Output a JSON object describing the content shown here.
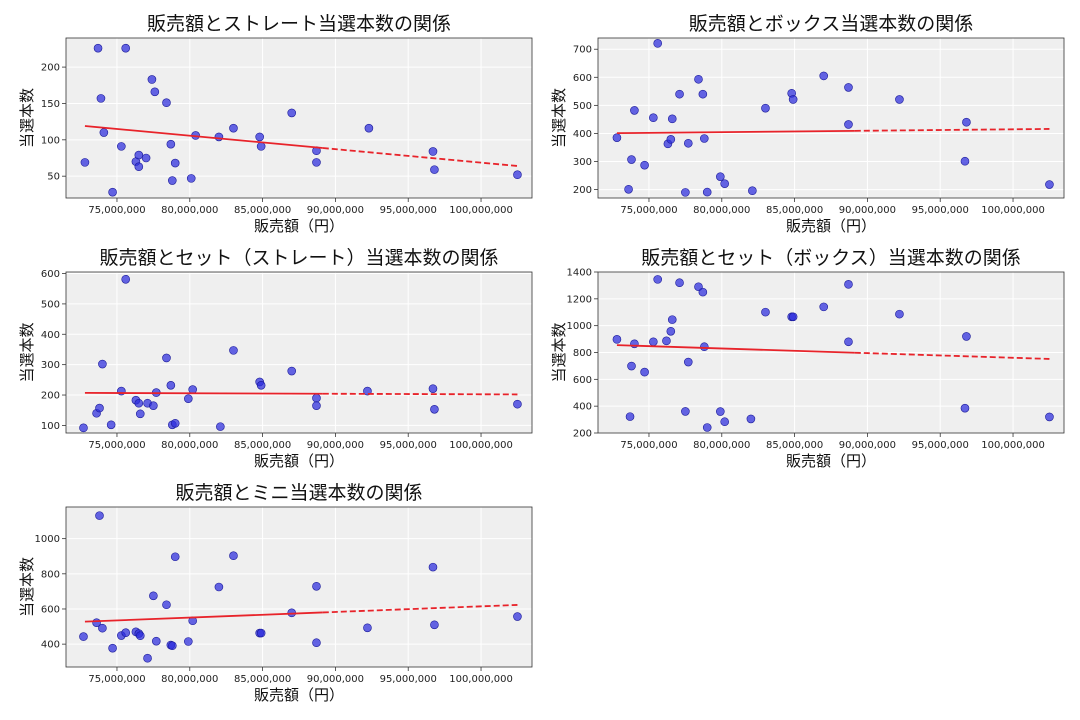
{
  "chart_data": [
    {
      "type": "scatter",
      "title": "販売額とストレート当選本数の関係",
      "xlabel": "販売額（円）",
      "ylabel": "当選本数",
      "xlim": [
        71500000,
        103500000
      ],
      "ylim": [
        20,
        240
      ],
      "xticks": [
        75000000,
        80000000,
        85000000,
        90000000,
        95000000,
        100000000
      ],
      "xtick_labels": [
        "75,000,000",
        "80,000,000",
        "85,000,000",
        "90,000,000",
        "95,000,000",
        "100,000,000"
      ],
      "yticks": [
        50,
        100,
        150,
        200
      ],
      "ytick_labels": [
        "50",
        "100",
        "150",
        "200"
      ],
      "grid": true,
      "points": [
        [
          72800000,
          69
        ],
        [
          73700000,
          226
        ],
        [
          73900000,
          157
        ],
        [
          74100000,
          110
        ],
        [
          74700000,
          28
        ],
        [
          75300000,
          91
        ],
        [
          75600000,
          226
        ],
        [
          76300000,
          70
        ],
        [
          76500000,
          79
        ],
        [
          76500000,
          63
        ],
        [
          77000000,
          75
        ],
        [
          77400000,
          183
        ],
        [
          77600000,
          166
        ],
        [
          78400000,
          151
        ],
        [
          78700000,
          94
        ],
        [
          78800000,
          44
        ],
        [
          79000000,
          68
        ],
        [
          80100000,
          47
        ],
        [
          80400000,
          106
        ],
        [
          82000000,
          104
        ],
        [
          83000000,
          116
        ],
        [
          84800000,
          104
        ],
        [
          84900000,
          91
        ],
        [
          87000000,
          137
        ],
        [
          88700000,
          85
        ],
        [
          88700000,
          69
        ],
        [
          92300000,
          116
        ],
        [
          96700000,
          84
        ],
        [
          96800000,
          59
        ],
        [
          102500000,
          52
        ]
      ],
      "trend": {
        "x": [
          72800000,
          102500000
        ],
        "y": [
          119,
          64
        ]
      }
    },
    {
      "type": "scatter",
      "title": "販売額とボックス当選本数の関係",
      "xlabel": "販売額（円）",
      "ylabel": "当選本数",
      "xlim": [
        71500000,
        103500000
      ],
      "ylim": [
        170,
        740
      ],
      "xticks": [
        75000000,
        80000000,
        85000000,
        90000000,
        95000000,
        100000000
      ],
      "xtick_labels": [
        "75,000,000",
        "80,000,000",
        "85,000,000",
        "90,000,000",
        "95,000,000",
        "100,000,000"
      ],
      "yticks": [
        200,
        300,
        400,
        500,
        600,
        700
      ],
      "ytick_labels": [
        "200",
        "300",
        "400",
        "500",
        "600",
        "700"
      ],
      "grid": true,
      "points": [
        [
          72800000,
          385
        ],
        [
          73600000,
          201
        ],
        [
          73800000,
          307
        ],
        [
          74000000,
          482
        ],
        [
          74700000,
          287
        ],
        [
          75300000,
          456
        ],
        [
          75600000,
          721
        ],
        [
          76300000,
          363
        ],
        [
          76500000,
          379
        ],
        [
          76600000,
          452
        ],
        [
          77100000,
          540
        ],
        [
          77500000,
          190
        ],
        [
          77700000,
          365
        ],
        [
          78400000,
          593
        ],
        [
          78700000,
          540
        ],
        [
          78800000,
          382
        ],
        [
          79000000,
          191
        ],
        [
          79900000,
          246
        ],
        [
          80200000,
          221
        ],
        [
          82100000,
          196
        ],
        [
          83000000,
          490
        ],
        [
          84800000,
          543
        ],
        [
          84900000,
          521
        ],
        [
          87000000,
          605
        ],
        [
          88700000,
          564
        ],
        [
          88700000,
          432
        ],
        [
          92200000,
          521
        ],
        [
          96700000,
          301
        ],
        [
          96800000,
          440
        ],
        [
          102500000,
          218
        ]
      ],
      "trend": {
        "x": [
          72800000,
          102500000
        ],
        "y": [
          401,
          416
        ]
      }
    },
    {
      "type": "scatter",
      "title": "販売額とセット（ストレート）当選本数の関係",
      "xlabel": "販売額（円）",
      "ylabel": "当選本数",
      "xlim": [
        71500000,
        103500000
      ],
      "ylim": [
        75,
        605
      ],
      "xticks": [
        75000000,
        80000000,
        85000000,
        90000000,
        95000000,
        100000000
      ],
      "xtick_labels": [
        "75,000,000",
        "80,000,000",
        "85,000,000",
        "90,000,000",
        "95,000,000",
        "100,000,000"
      ],
      "yticks": [
        100,
        200,
        300,
        400,
        500,
        600
      ],
      "ytick_labels": [
        "100",
        "200",
        "300",
        "400",
        "500",
        "600"
      ],
      "grid": true,
      "points": [
        [
          72700000,
          92
        ],
        [
          73600000,
          140
        ],
        [
          73800000,
          157
        ],
        [
          74000000,
          302
        ],
        [
          74600000,
          102
        ],
        [
          75300000,
          213
        ],
        [
          75600000,
          581
        ],
        [
          76300000,
          183
        ],
        [
          76500000,
          173
        ],
        [
          76600000,
          138
        ],
        [
          77100000,
          173
        ],
        [
          77500000,
          165
        ],
        [
          77700000,
          208
        ],
        [
          78400000,
          322
        ],
        [
          78700000,
          232
        ],
        [
          78800000,
          102
        ],
        [
          79000000,
          107
        ],
        [
          79900000,
          188
        ],
        [
          80200000,
          218
        ],
        [
          82100000,
          96
        ],
        [
          83000000,
          347
        ],
        [
          84800000,
          243
        ],
        [
          84900000,
          232
        ],
        [
          87000000,
          279
        ],
        [
          88700000,
          190
        ],
        [
          88700000,
          165
        ],
        [
          92200000,
          213
        ],
        [
          96700000,
          221
        ],
        [
          96800000,
          153
        ],
        [
          102500000,
          170
        ]
      ],
      "trend": {
        "x": [
          72800000,
          102500000
        ],
        "y": [
          207,
          202
        ]
      }
    },
    {
      "type": "scatter",
      "title": "販売額とセット（ボックス）当選本数の関係",
      "xlabel": "販売額（円）",
      "ylabel": "当選本数",
      "xlim": [
        71500000,
        103500000
      ],
      "ylim": [
        200,
        1400
      ],
      "xticks": [
        75000000,
        80000000,
        85000000,
        90000000,
        95000000,
        100000000
      ],
      "xtick_labels": [
        "75,000,000",
        "80,000,000",
        "85,000,000",
        "90,000,000",
        "95,000,000",
        "100,000,000"
      ],
      "yticks": [
        200,
        400,
        600,
        800,
        1000,
        1200,
        1400
      ],
      "ytick_labels": [
        "200",
        "400",
        "600",
        "800",
        "1000",
        "1200",
        "1400"
      ],
      "grid": true,
      "points": [
        [
          72800000,
          898
        ],
        [
          73700000,
          322
        ],
        [
          73800000,
          699
        ],
        [
          74000000,
          865
        ],
        [
          74700000,
          654
        ],
        [
          75300000,
          880
        ],
        [
          75600000,
          1345
        ],
        [
          76200000,
          887
        ],
        [
          76500000,
          958
        ],
        [
          76600000,
          1045
        ],
        [
          77100000,
          1320
        ],
        [
          77500000,
          361
        ],
        [
          77700000,
          729
        ],
        [
          78400000,
          1290
        ],
        [
          78700000,
          1250
        ],
        [
          78800000,
          843
        ],
        [
          79000000,
          241
        ],
        [
          79900000,
          360
        ],
        [
          80200000,
          284
        ],
        [
          82000000,
          305
        ],
        [
          83000000,
          1101
        ],
        [
          84800000,
          1066
        ],
        [
          84900000,
          1066
        ],
        [
          87000000,
          1140
        ],
        [
          88700000,
          1308
        ],
        [
          88700000,
          880
        ],
        [
          92200000,
          1086
        ],
        [
          96700000,
          385
        ],
        [
          96800000,
          920
        ],
        [
          102500000,
          320
        ]
      ],
      "trend": {
        "x": [
          72800000,
          102500000
        ],
        "y": [
          855,
          752
        ]
      }
    },
    {
      "type": "scatter",
      "title": "販売額とミニ当選本数の関係",
      "xlabel": "販売額（円）",
      "ylabel": "当選本数",
      "xlim": [
        71500000,
        103500000
      ],
      "ylim": [
        270,
        1180
      ],
      "xticks": [
        75000000,
        80000000,
        85000000,
        90000000,
        95000000,
        100000000
      ],
      "xtick_labels": [
        "75,000,000",
        "80,000,000",
        "85,000,000",
        "90,000,000",
        "95,000,000",
        "100,000,000"
      ],
      "yticks": [
        400,
        600,
        800,
        1000
      ],
      "ytick_labels": [
        "400",
        "600",
        "800",
        "1000"
      ],
      "grid": true,
      "points": [
        [
          72700000,
          443
        ],
        [
          73600000,
          522
        ],
        [
          73800000,
          1131
        ],
        [
          74000000,
          491
        ],
        [
          74700000,
          377
        ],
        [
          75300000,
          449
        ],
        [
          75600000,
          465
        ],
        [
          76300000,
          470
        ],
        [
          76500000,
          460
        ],
        [
          76600000,
          448
        ],
        [
          77100000,
          320
        ],
        [
          77500000,
          675
        ],
        [
          77700000,
          417
        ],
        [
          78400000,
          624
        ],
        [
          78700000,
          395
        ],
        [
          78800000,
          391
        ],
        [
          79000000,
          897
        ],
        [
          79900000,
          415
        ],
        [
          80200000,
          533
        ],
        [
          82000000,
          725
        ],
        [
          83000000,
          903
        ],
        [
          84800000,
          463
        ],
        [
          84900000,
          463
        ],
        [
          87000000,
          578
        ],
        [
          88700000,
          408
        ],
        [
          88700000,
          729
        ],
        [
          92200000,
          493
        ],
        [
          96700000,
          838
        ],
        [
          96800000,
          510
        ],
        [
          102500000,
          557
        ]
      ],
      "trend": {
        "x": [
          72800000,
          102500000
        ],
        "y": [
          528,
          623
        ]
      }
    }
  ],
  "colors": {
    "point": "#2b2bdd",
    "point_edge": "#1a1a99",
    "trend": "#e8232a",
    "plot_bg": "#efefef",
    "grid": "#ffffff",
    "frame": "#333333"
  }
}
